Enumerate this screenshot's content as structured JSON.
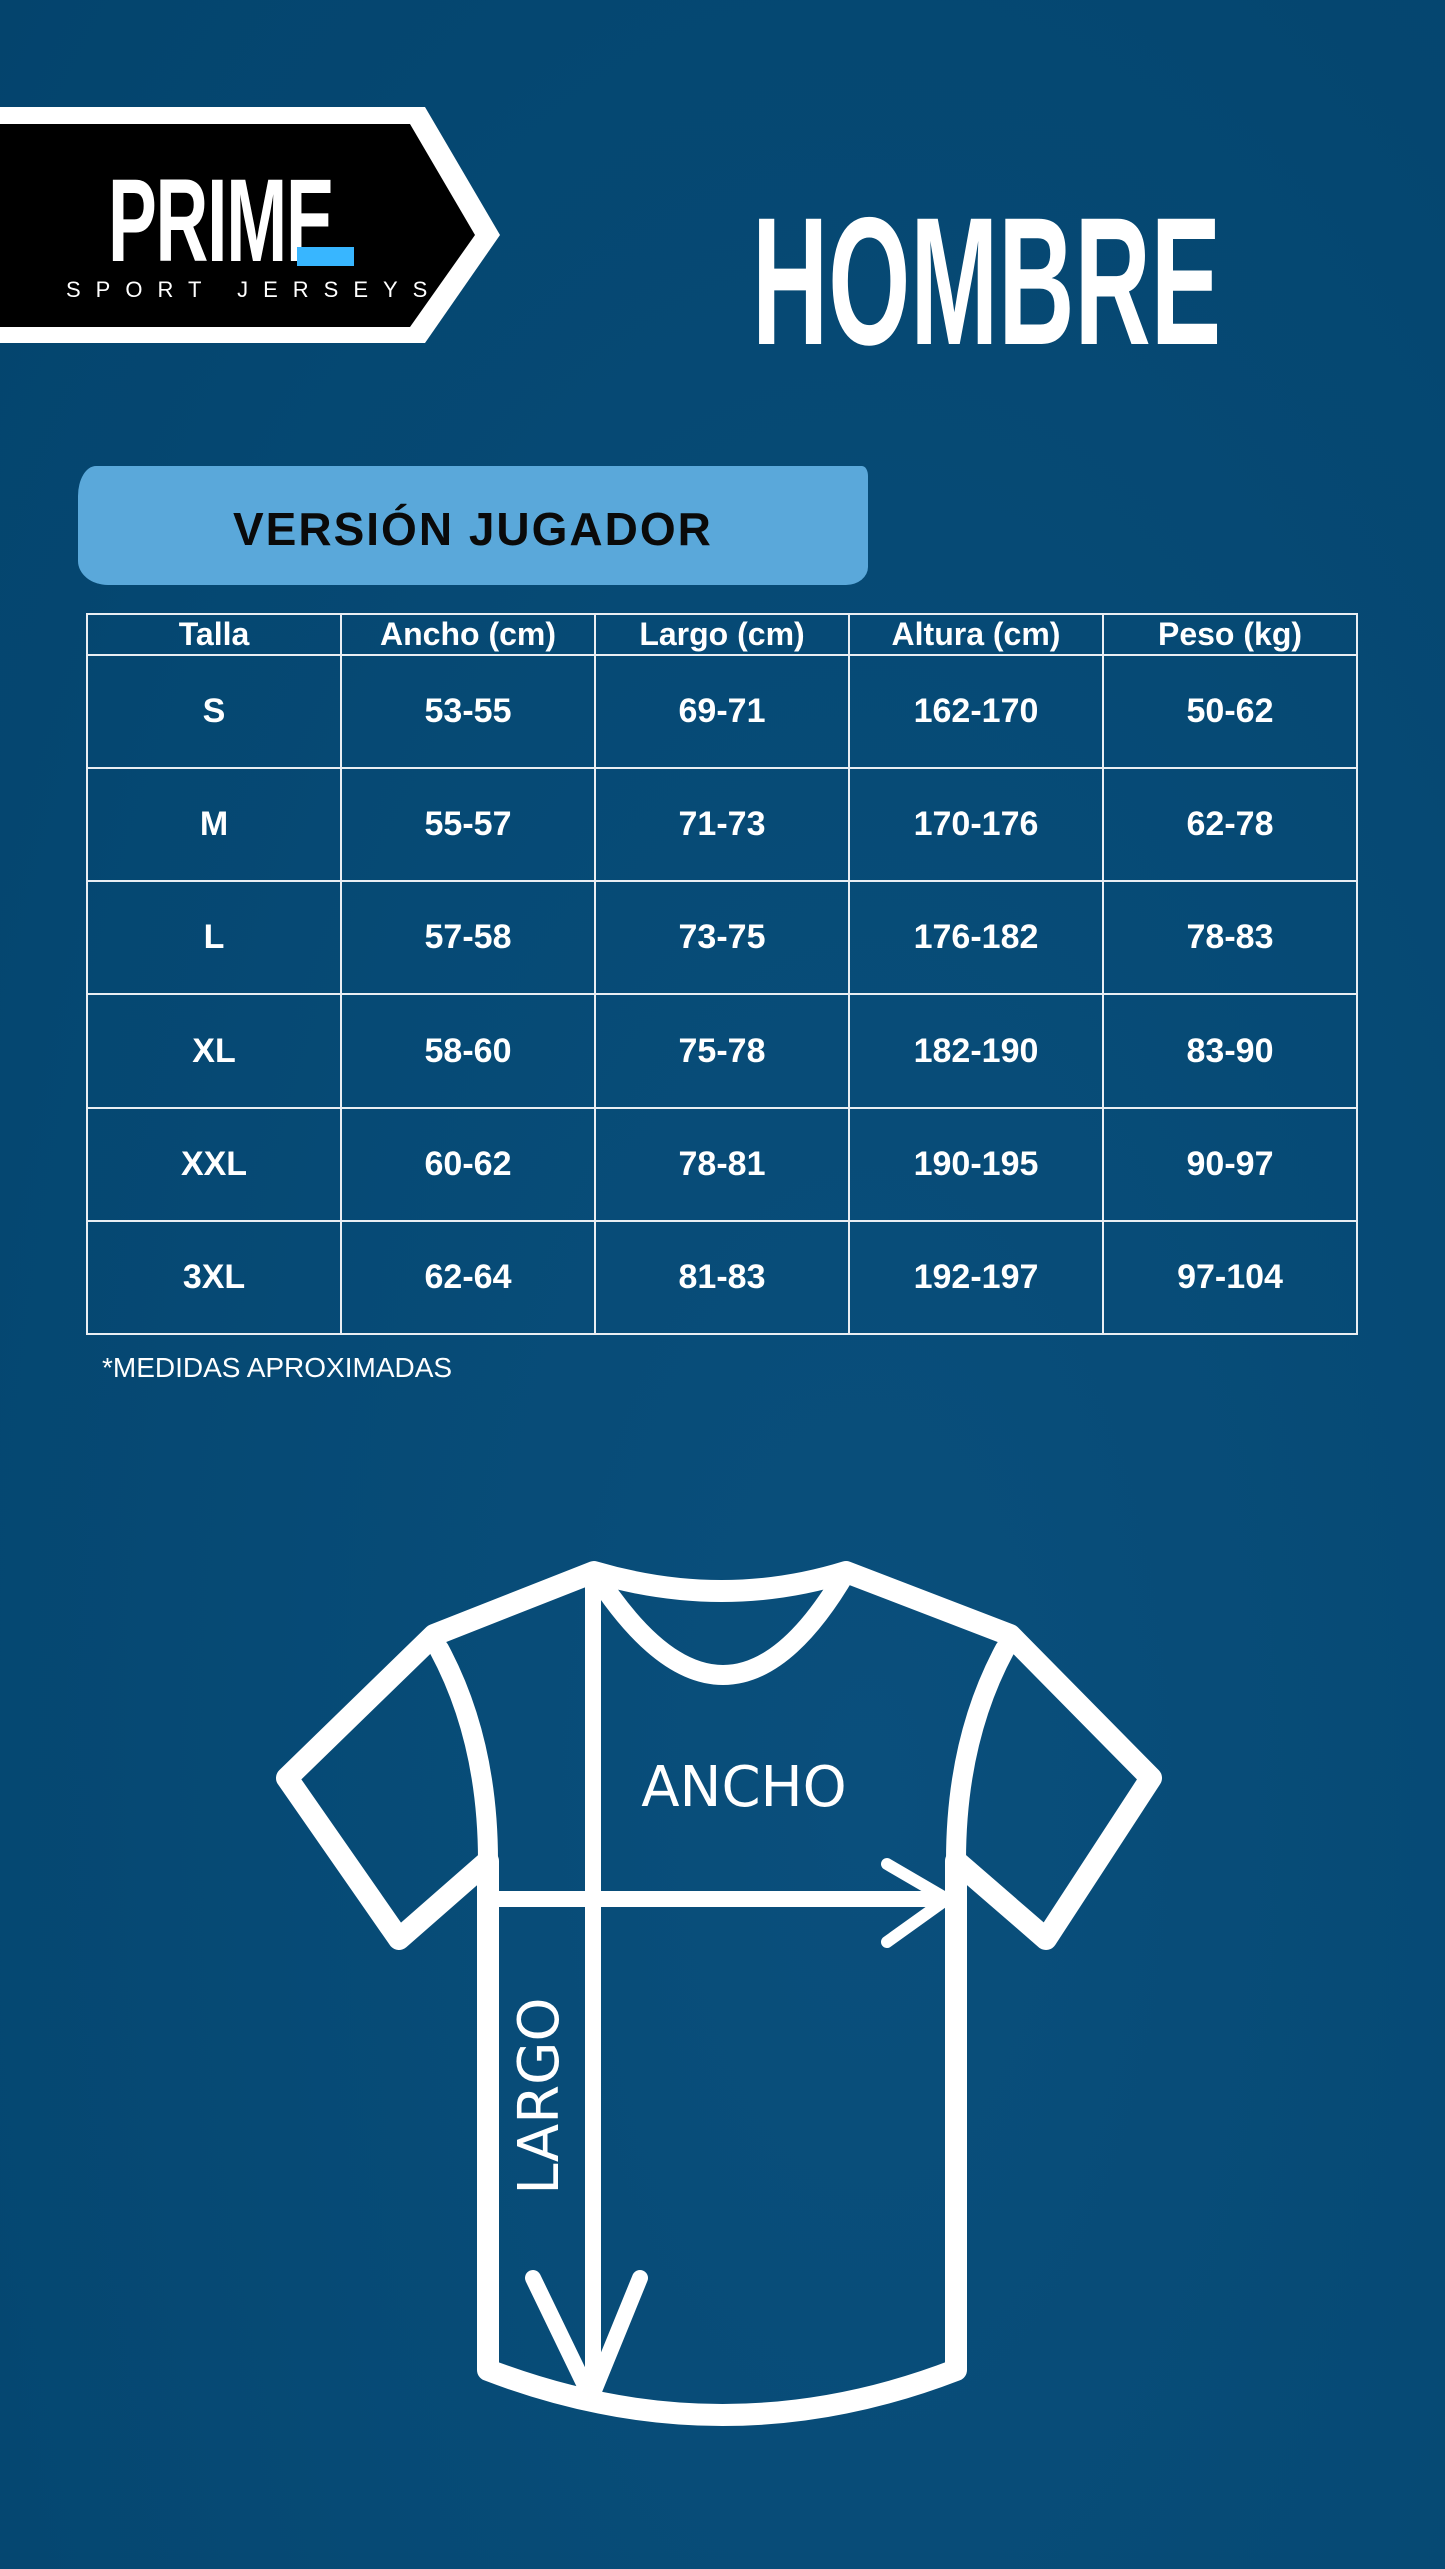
{
  "brand": {
    "name": "PRIME",
    "tagline": "SPORT JERSEYS",
    "accent_color": "#38b6ff"
  },
  "title": "HOMBRE",
  "version_label": "VERSIÓN JUGADOR",
  "table": {
    "headers": [
      "Talla",
      "Ancho (cm)",
      "Largo (cm)",
      "Altura (cm)",
      "Peso (kg)"
    ],
    "rows": [
      [
        "S",
        "53-55",
        "69-71",
        "162-170",
        "50-62"
      ],
      [
        "M",
        "55-57",
        "71-73",
        "170-176",
        "62-78"
      ],
      [
        "L",
        "57-58",
        "73-75",
        "176-182",
        "78-83"
      ],
      [
        "XL",
        "58-60",
        "75-78",
        "182-190",
        "83-90"
      ],
      [
        "XXL",
        "60-62",
        "78-81",
        "190-195",
        "90-97"
      ],
      [
        "3XL",
        "62-64",
        "81-83",
        "192-197",
        "97-104"
      ]
    ]
  },
  "note": "*MEDIDAS APROXIMADAS",
  "diagram": {
    "width_label": "ANCHO",
    "length_label": "LARGO"
  }
}
